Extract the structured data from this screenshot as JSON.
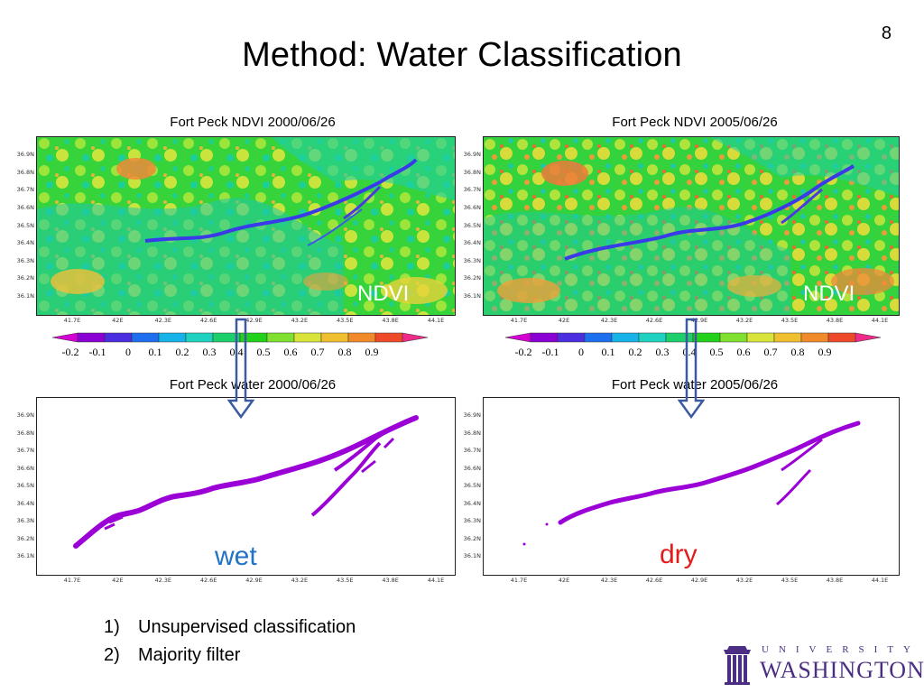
{
  "slide": {
    "number": "8",
    "title": "Method: Water Classification"
  },
  "panels": {
    "ndvi_2000_title": "Fort Peck NDVI 2000/06/26",
    "ndvi_2005_title": "Fort Peck NDVI 2005/06/26",
    "water_2000_title": "Fort Peck  water 2000/06/26",
    "water_2005_title": "Fort Peck  water 2005/06/26"
  },
  "overlays": {
    "ndvi_label": "NDVI",
    "wet_label": "wet",
    "dry_label": "dry"
  },
  "axes": {
    "y_ticks": [
      "36.9N",
      "36.8N",
      "36.7N",
      "36.6N",
      "36.5N",
      "36.4N",
      "36.3N",
      "36.2N",
      "36.1N"
    ],
    "x_ticks": [
      "41.7E",
      "42E",
      "42.3E",
      "42.6E",
      "42.9E",
      "43.2E",
      "43.5E",
      "43.8E",
      "44.1E"
    ]
  },
  "colorbar": {
    "labels": [
      "-0.2",
      "-0.1",
      "0",
      "0.1",
      "0.2",
      "0.3",
      "0.4",
      "0.5",
      "0.6",
      "0.7",
      "0.8",
      "0.9"
    ],
    "colors": [
      "#8a00d4",
      "#4a2ee0",
      "#1e6ff0",
      "#17b2e8",
      "#1fd2c0",
      "#1ccf6a",
      "#22d21a",
      "#7fe030",
      "#d8e43a",
      "#f0bf30",
      "#f08a2a",
      "#ee4a2a"
    ]
  },
  "steps": [
    {
      "num": "1)",
      "text": "Unsupervised classification"
    },
    {
      "num": "2)",
      "text": "Majority filter"
    }
  ],
  "logo": {
    "line1": "UNIVERSITY OF",
    "line2": "WASHINGTON"
  },
  "colors": {
    "water_purple": "#9b00d6",
    "ndvi_green": "#2fd23a",
    "arrow_blue": "#3b5aa0",
    "uw_purple": "#4b2e83"
  }
}
